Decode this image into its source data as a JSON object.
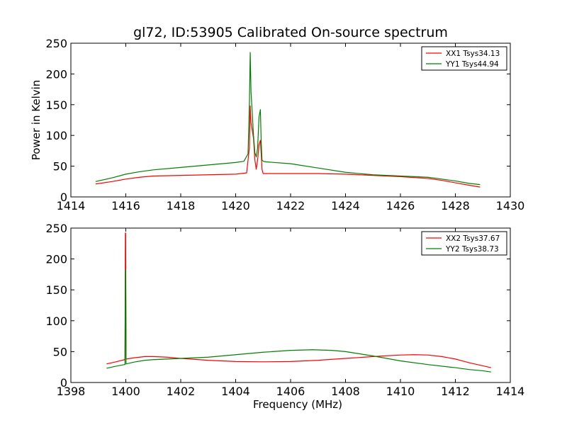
{
  "title": "gl72, ID:53905 Calibrated On-source spectrum",
  "chart_data": [
    {
      "type": "line",
      "xlim": [
        1414,
        1430
      ],
      "ylim": [
        0,
        250
      ],
      "xticks": [
        "1414",
        "1416",
        "1418",
        "1420",
        "1422",
        "1424",
        "1426",
        "1428",
        "1430"
      ],
      "yticks": [
        "0",
        "50",
        "100",
        "150",
        "200",
        "250"
      ],
      "xlabel": "",
      "ylabel": "Power in Kelvin",
      "legend_position": "top-right",
      "series": [
        {
          "name": "XX1 Tsys34.13",
          "color": "#ff0000",
          "x": [
            1414.9,
            1415.5,
            1416.0,
            1416.5,
            1417.0,
            1418.0,
            1419.0,
            1420.0,
            1420.4,
            1420.5,
            1420.53,
            1420.56,
            1420.6,
            1420.65,
            1420.7,
            1420.75,
            1420.8,
            1420.85,
            1420.9,
            1420.93,
            1420.96,
            1421.0,
            1421.1,
            1422.0,
            1423.0,
            1424.0,
            1425.0,
            1426.0,
            1427.0,
            1427.5,
            1428.0,
            1428.5,
            1428.9
          ],
          "y": [
            21,
            25,
            29,
            32,
            34,
            35,
            36,
            37,
            39,
            80,
            148,
            120,
            110,
            95,
            60,
            45,
            60,
            85,
            92,
            70,
            45,
            38,
            38,
            38,
            38,
            37,
            35,
            33,
            30,
            27,
            23,
            19,
            16
          ]
        },
        {
          "name": "YY1 Tsys44.94",
          "color": "#008000",
          "x": [
            1414.9,
            1415.5,
            1416.0,
            1416.5,
            1417.0,
            1418.0,
            1419.0,
            1420.0,
            1420.3,
            1420.45,
            1420.5,
            1420.53,
            1420.56,
            1420.6,
            1420.65,
            1420.7,
            1420.75,
            1420.8,
            1420.85,
            1420.9,
            1420.93,
            1420.96,
            1421.0,
            1421.1,
            1422.0,
            1423.0,
            1424.0,
            1425.0,
            1426.0,
            1427.0,
            1427.5,
            1428.0,
            1428.5,
            1428.9
          ],
          "y": [
            25,
            31,
            37,
            41,
            44,
            48,
            52,
            56,
            58,
            70,
            150,
            235,
            170,
            140,
            100,
            72,
            65,
            80,
            130,
            142,
            90,
            60,
            58,
            57,
            54,
            47,
            40,
            36,
            34,
            32,
            29,
            26,
            22,
            20
          ]
        }
      ]
    },
    {
      "type": "line",
      "xlim": [
        1398,
        1414
      ],
      "ylim": [
        0,
        250
      ],
      "xticks": [
        "1398",
        "1400",
        "1402",
        "1404",
        "1406",
        "1408",
        "1410",
        "1412",
        "1414"
      ],
      "yticks": [
        "0",
        "50",
        "100",
        "150",
        "200",
        "250"
      ],
      "xlabel": "Frequency (MHz)",
      "ylabel": "",
      "legend_position": "top-right",
      "series": [
        {
          "name": "XX2 Tsys37.67",
          "color": "#ff0000",
          "x": [
            1399.3,
            1399.6,
            1399.95,
            1399.97,
            1399.985,
            1399.995,
            1400.01,
            1400.3,
            1400.7,
            1401.0,
            1401.5,
            1402.0,
            1403.0,
            1404.0,
            1405.0,
            1406.0,
            1407.0,
            1408.0,
            1409.0,
            1410.0,
            1410.5,
            1411.0,
            1411.5,
            1412.0,
            1412.5,
            1413.0,
            1413.3
          ],
          "y": [
            30,
            33,
            37,
            37,
            242,
            242,
            38,
            40,
            42,
            42,
            41,
            39,
            36,
            34,
            33.5,
            34,
            36,
            39,
            42,
            44.5,
            45,
            44.5,
            42,
            38,
            32,
            27,
            24
          ]
        },
        {
          "name": "YY2 Tsys38.73",
          "color": "#008000",
          "x": [
            1399.3,
            1399.6,
            1399.95,
            1399.97,
            1399.985,
            1399.995,
            1400.01,
            1400.3,
            1400.7,
            1401.0,
            1401.5,
            1402.0,
            1403.0,
            1404.0,
            1405.0,
            1406.0,
            1406.8,
            1407.5,
            1408.0,
            1409.0,
            1410.0,
            1411.0,
            1412.0,
            1412.5,
            1413.0,
            1413.3
          ],
          "y": [
            23,
            26,
            29,
            29,
            182,
            182,
            30,
            33,
            36,
            37,
            38,
            39,
            41,
            45,
            49,
            52,
            53,
            52,
            50,
            43,
            35,
            29,
            24,
            21,
            19,
            17
          ]
        }
      ]
    }
  ]
}
